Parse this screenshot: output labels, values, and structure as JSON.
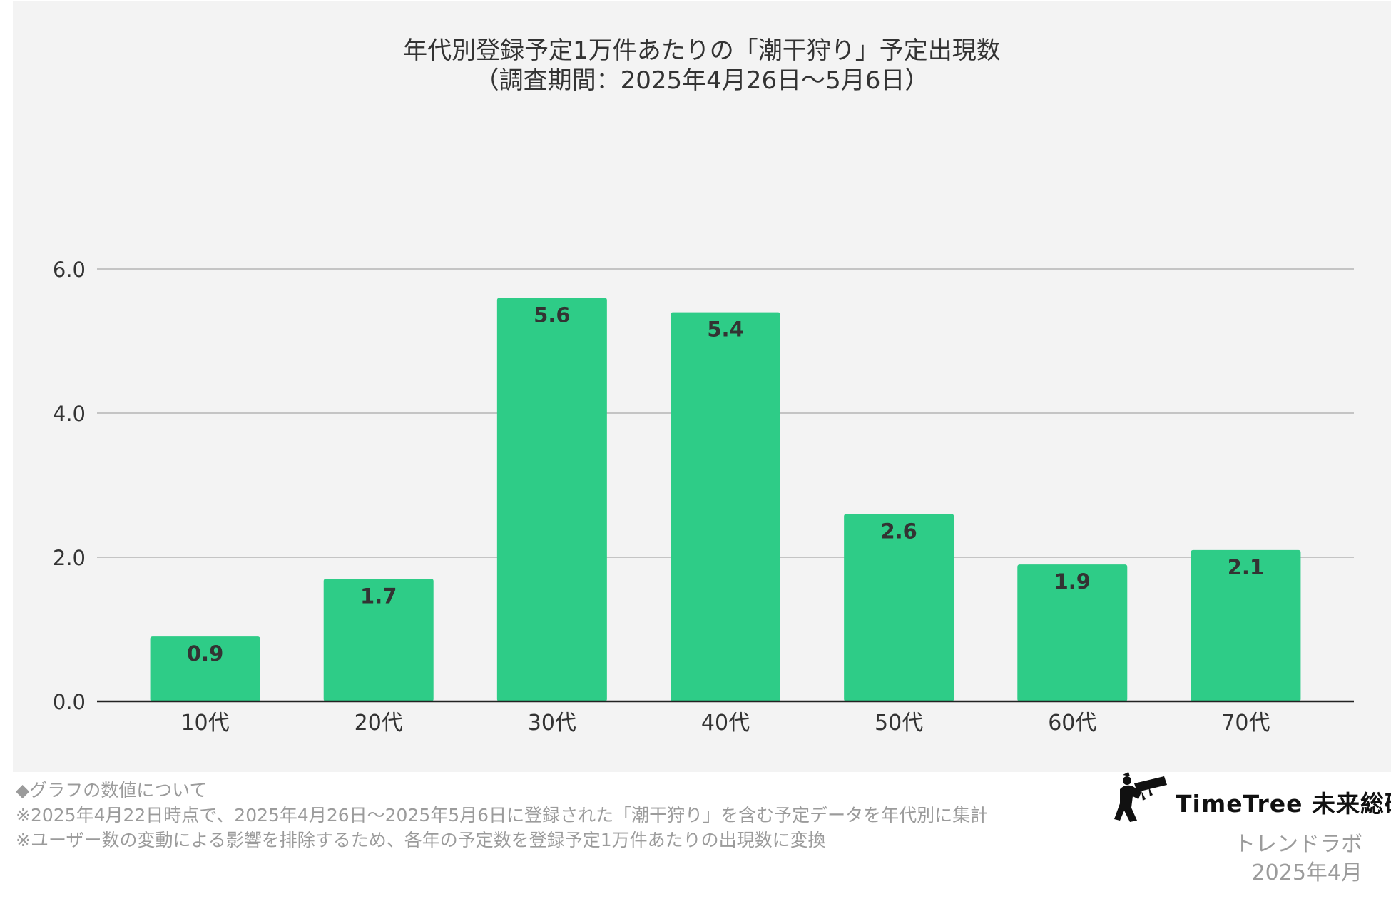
{
  "chart_data": {
    "type": "bar",
    "title": "年代別登録予定1万件あたりの「潮干狩り」予定出現数",
    "subtitle": "（調査期間：2025年4月26日〜5月6日）",
    "categories": [
      "10代",
      "20代",
      "30代",
      "40代",
      "50代",
      "60代",
      "70代"
    ],
    "values": [
      0.9,
      1.7,
      5.6,
      5.4,
      2.6,
      1.9,
      2.1
    ],
    "value_labels": [
      "0.9",
      "1.7",
      "5.6",
      "5.4",
      "2.6",
      "1.9",
      "2.1"
    ],
    "yticks": [
      "0.0",
      "2.0",
      "4.0",
      "6.0"
    ],
    "ytick_values": [
      0,
      2,
      4,
      6
    ],
    "ylim": [
      0,
      6
    ],
    "grid": true,
    "legend": "none",
    "bar_color": "#2ecc87"
  },
  "footnotes": [
    "◆グラフの数値について",
    "※2025年4月22日時点で、2025年4月26日〜2025年5月6日に登録された「潮干狩り」を含む予定データを年代別に集計",
    "※ユーザー数の変動による影響を排除するため、各年の予定数を登録予定1万件あたりの出現数に変換"
  ],
  "brand": {
    "name": "TimeTree 未来総研",
    "sub": "トレンドラボ",
    "date": "2025年4月"
  }
}
